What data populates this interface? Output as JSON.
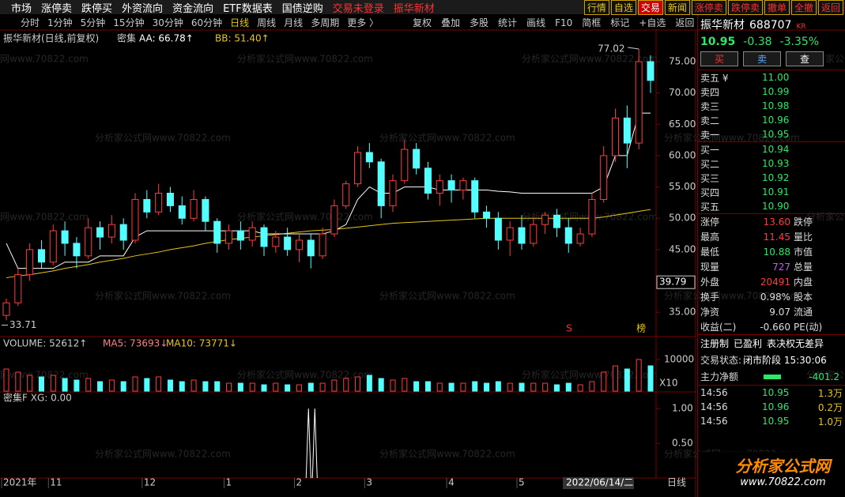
{
  "menu": [
    "市场",
    "涨停卖",
    "跌停买",
    "外资流向",
    "资金流向",
    "ETF数据表",
    "国债逆购",
    "交易未登录",
    "振华新材"
  ],
  "buttons": [
    "行情",
    "自选",
    "交易",
    "新闻",
    "涨停卖",
    "跌停卖",
    "撤单",
    "全撤",
    "返回"
  ],
  "periods": [
    "分时",
    "1分钟",
    "5分钟",
    "15分钟",
    "30分钟",
    "60分钟",
    "日线",
    "周线",
    "月线",
    "多周期",
    "更多 〉"
  ],
  "tools": [
    "复权",
    "叠加",
    "多股",
    "统计",
    "画线",
    "F10",
    "简框",
    "标记",
    "+自选",
    "返回"
  ],
  "watermark": "分析家公式网www.70822.com",
  "chart_data": {
    "type": "candlestick",
    "title": "振华新材(日线,前复权)",
    "indicator": "密集",
    "legend": [
      {
        "label": "AA: 66.78↑",
        "color": "#ffffff"
      },
      {
        "label": "BB: 51.40↑",
        "color": "#e6c619"
      }
    ],
    "categories": [
      "2021年",
      null,
      null,
      null,
      "11",
      null,
      null,
      null,
      null,
      null,
      null,
      null,
      "12",
      null,
      null,
      null,
      null,
      null,
      null,
      "1",
      null,
      null,
      null,
      null,
      null,
      "2",
      null,
      null,
      null,
      null,
      null,
      "3",
      null,
      null,
      null,
      null,
      null,
      null,
      "4",
      null,
      null,
      null,
      null,
      null,
      "5",
      null,
      null,
      null,
      null,
      null,
      null,
      null,
      null,
      null,
      null,
      null
    ],
    "open": [
      34.5,
      36.5,
      41,
      45,
      43,
      48,
      46,
      44,
      48.5,
      47,
      49,
      46.5,
      53,
      51,
      54,
      52,
      50,
      53,
      49.5,
      46,
      48,
      46.5,
      48.5,
      45.5,
      47,
      45,
      46.5,
      44,
      47.5,
      52,
      55.5,
      60.5,
      59,
      52,
      56,
      61,
      58,
      54,
      56,
      54.5,
      56,
      51,
      50,
      46.5,
      48.5,
      46,
      49,
      50.5,
      48.5,
      46,
      47.5,
      53,
      60,
      66,
      62,
      75
    ],
    "close": [
      36.5,
      41,
      45,
      43,
      48,
      46,
      44,
      48.5,
      47,
      49,
      46.5,
      53,
      51,
      54,
      52,
      50,
      53,
      49.5,
      46,
      48,
      46.5,
      48.5,
      45.5,
      47,
      45,
      46.5,
      44,
      47.5,
      52,
      55.5,
      60.5,
      59,
      52,
      56,
      61,
      58,
      54,
      56,
      54.5,
      56,
      51,
      50,
      46.5,
      48.5,
      46,
      49,
      50.5,
      48.5,
      46,
      47.5,
      53,
      60,
      66,
      62,
      75,
      72
    ],
    "high": [
      37.2,
      42,
      46,
      46.5,
      49,
      49.5,
      47,
      50,
      49.5,
      50.5,
      50,
      54,
      54.5,
      55.5,
      55,
      53.5,
      54.5,
      53.5,
      50,
      49,
      49.5,
      49.5,
      49,
      48,
      48.5,
      47.5,
      47.5,
      48.5,
      53,
      56,
      61.5,
      62,
      59.5,
      57,
      62.5,
      62,
      59,
      57,
      57,
      56.5,
      56.5,
      52,
      51,
      49.5,
      50.5,
      50,
      51,
      51.5,
      50,
      48.5,
      54,
      61.5,
      67.5,
      68,
      77.02,
      76
    ],
    "low": [
      33.71,
      36,
      40,
      42,
      42.5,
      44,
      42,
      43.5,
      45,
      46,
      45,
      46,
      50,
      50.5,
      51,
      49,
      49.5,
      48,
      44.5,
      45,
      45,
      45.5,
      44,
      44.5,
      44,
      43,
      42,
      43.5,
      47,
      51.5,
      55,
      58,
      50,
      51,
      55.5,
      57,
      53,
      52,
      52.5,
      53,
      50,
      48.5,
      45,
      44,
      45,
      45.5,
      47.5,
      47,
      44.5,
      45.5,
      47,
      52.5,
      59,
      58,
      61,
      70
    ],
    "aa": [
      46,
      42,
      42,
      42,
      42,
      43,
      43,
      43,
      44,
      44,
      44,
      47,
      48,
      48,
      48,
      48,
      48,
      48,
      48,
      48,
      48,
      48,
      47.5,
      47.5,
      47.5,
      47.5,
      47.5,
      47.5,
      48,
      49,
      53,
      55,
      54,
      54,
      55,
      55,
      55,
      54.5,
      54.5,
      54.5,
      54.5,
      54.5,
      54.3,
      54.2,
      54,
      54,
      54,
      54,
      54,
      54,
      54,
      55,
      60,
      60,
      66.78,
      66.78
    ],
    "bb": [
      40.5,
      40.8,
      41,
      41.3,
      41.6,
      42,
      42.3,
      42.6,
      43,
      43.3,
      43.6,
      44,
      44.3,
      44.6,
      45,
      45.3,
      45.6,
      46,
      46.3,
      46.6,
      46.8,
      47,
      47.2,
      47.4,
      47.6,
      47.8,
      48,
      48.1,
      48.2,
      48.4,
      48.6,
      48.8,
      49,
      49.2,
      49.3,
      49.4,
      49.5,
      49.6,
      49.7,
      49.8,
      49.9,
      50,
      50,
      50,
      50,
      50,
      50,
      50,
      50,
      50,
      50,
      50.2,
      50.5,
      50.8,
      51.1,
      51.4
    ],
    "ylim": [
      31.24,
      79.79
    ],
    "yticks": [
      {
        "value": 75,
        "label": "75.00"
      },
      {
        "value": 70,
        "label": "70.00"
      },
      {
        "value": 65,
        "label": "65.00"
      },
      {
        "value": 60,
        "label": "60.00"
      },
      {
        "value": 55,
        "label": "55.00"
      },
      {
        "value": 50,
        "label": "50.00"
      },
      {
        "value": 45,
        "label": "45.00"
      },
      {
        "value": 35,
        "label": "35.00"
      }
    ],
    "high_mark": 77.02,
    "low_mark": 33.71,
    "cursor_price": 39.79,
    "signals": [
      {
        "index": 48,
        "label": "S"
      },
      {
        "index": 54,
        "label": "榜"
      }
    ],
    "volume": {
      "labels": [
        "VOLUME: 52612↑",
        "MA5: 73693↓",
        "MA10: 73771↓"
      ],
      "unit": "X10",
      "values": [
        7000,
        6000,
        5000,
        4500,
        5000,
        4000,
        3500,
        4000,
        3000,
        3500,
        3000,
        4500,
        4000,
        4500,
        3500,
        3000,
        3500,
        3000,
        3000,
        2500,
        2500,
        2500,
        2000,
        2500,
        2000,
        2000,
        2500,
        2500,
        3500,
        4000,
        4500,
        5000,
        4000,
        3500,
        4000,
        3000,
        3000,
        2500,
        2500,
        2500,
        3000,
        2500,
        3000,
        2500,
        2500,
        2500,
        2500,
        2000,
        2500,
        2000,
        3000,
        6000,
        8000,
        7000,
        10000,
        8000
      ],
      "ylim": [
        0,
        17000
      ],
      "yticks": [
        10000
      ]
    },
    "xg": {
      "label": "密集F XG: 0.00",
      "values": [
        0,
        0,
        0,
        0,
        0,
        0,
        0,
        0,
        0,
        0,
        0,
        0,
        0,
        0,
        0,
        0,
        0,
        0,
        0,
        0,
        0,
        0,
        0,
        0,
        0,
        0,
        1,
        0,
        0,
        0,
        0,
        0,
        0,
        0,
        0,
        0,
        0,
        0,
        0,
        0,
        0,
        0,
        0,
        0,
        0,
        0,
        0,
        0,
        0,
        0,
        0,
        0,
        0,
        0,
        0,
        0
      ],
      "ylim": [
        0,
        1.23
      ],
      "yticks": [
        {
          "value": 1,
          "label": "1.00"
        },
        {
          "value": 0.5,
          "label": "0.50"
        }
      ]
    },
    "cursor_date": "2022/06/14/二",
    "period": "日线"
  },
  "quote": {
    "name": "振华新材",
    "code": "688707",
    "tag": "KR",
    "price": "10.95",
    "change": "-0.38",
    "pct": "-3.35%",
    "actions": [
      "买",
      "卖",
      "查"
    ],
    "asks": [
      [
        "卖五 ¥",
        "11.00"
      ],
      [
        "卖四",
        "10.99"
      ],
      [
        "卖三",
        "10.98"
      ],
      [
        "卖二",
        "10.96"
      ],
      [
        "卖一",
        "10.95"
      ]
    ],
    "bids": [
      [
        "买一",
        "10.94"
      ],
      [
        "买二",
        "10.93"
      ],
      [
        "买三",
        "10.92"
      ],
      [
        "买四",
        "10.91"
      ],
      [
        "买五",
        "10.90"
      ]
    ],
    "stats": [
      [
        "涨停",
        "13.60",
        "跌停"
      ],
      [
        "最高",
        "11.45",
        "量比"
      ],
      [
        "最低",
        "10.88",
        "市值"
      ],
      [
        "现量",
        "727",
        "总量"
      ],
      [
        "外盘",
        "20491",
        "内盘"
      ],
      [
        "换手",
        "0.98%",
        "股本"
      ],
      [
        "净资",
        "9.07",
        "流通"
      ],
      [
        "收益(二)",
        "-0.660",
        "PE(动)"
      ]
    ],
    "flags": [
      "注册制",
      "已盈利",
      "表决权无差异"
    ],
    "status_label": "交易状态:",
    "status": "闭市阶段 15:30:06",
    "flow_label": "主力净额",
    "flow": "-401.2",
    "trades": [
      [
        "14:56",
        "10.95",
        "1.3万"
      ],
      [
        "14:56",
        "10.96",
        "0.2万"
      ],
      [
        "14:56",
        "10.95",
        "1.0万"
      ]
    ]
  },
  "logo": {
    "title": "分析家公式网",
    "url": "www.70822.com"
  }
}
